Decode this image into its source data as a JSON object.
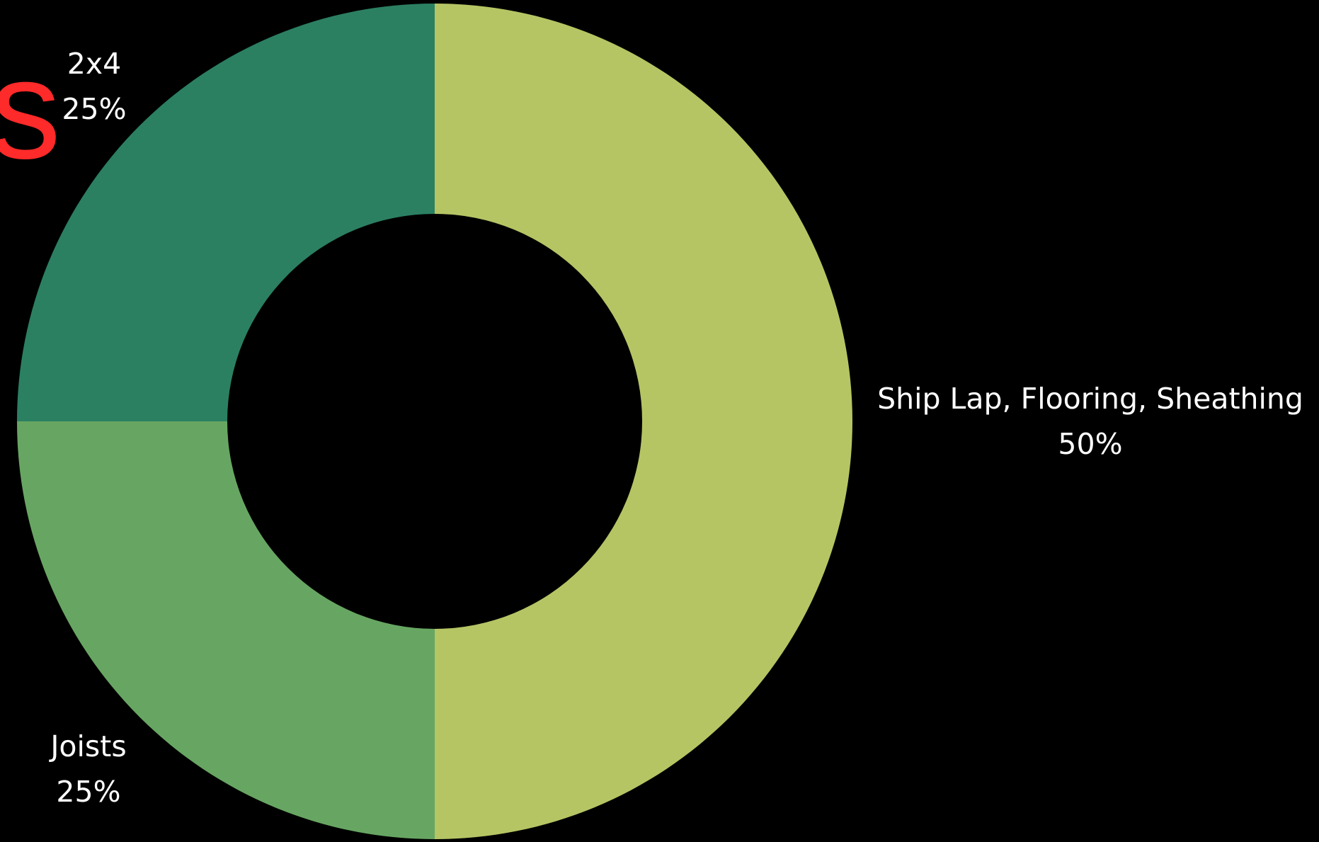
{
  "header": {
    "title_fragment": "s"
  },
  "chart_data": {
    "type": "pie",
    "donut": true,
    "slices": [
      {
        "label": "Ship Lap, Flooring, Sheathing",
        "value": 50,
        "value_label": "50%",
        "color": "#b5c564"
      },
      {
        "label": "Joists",
        "value": 25,
        "value_label": "25%",
        "color": "#67a662"
      },
      {
        "label": "2x4",
        "value": 25,
        "value_label": "25%",
        "color": "#2b8062"
      }
    ],
    "start": "12 o'clock",
    "direction": "clockwise",
    "legend": "none",
    "background_color": "#000000"
  }
}
